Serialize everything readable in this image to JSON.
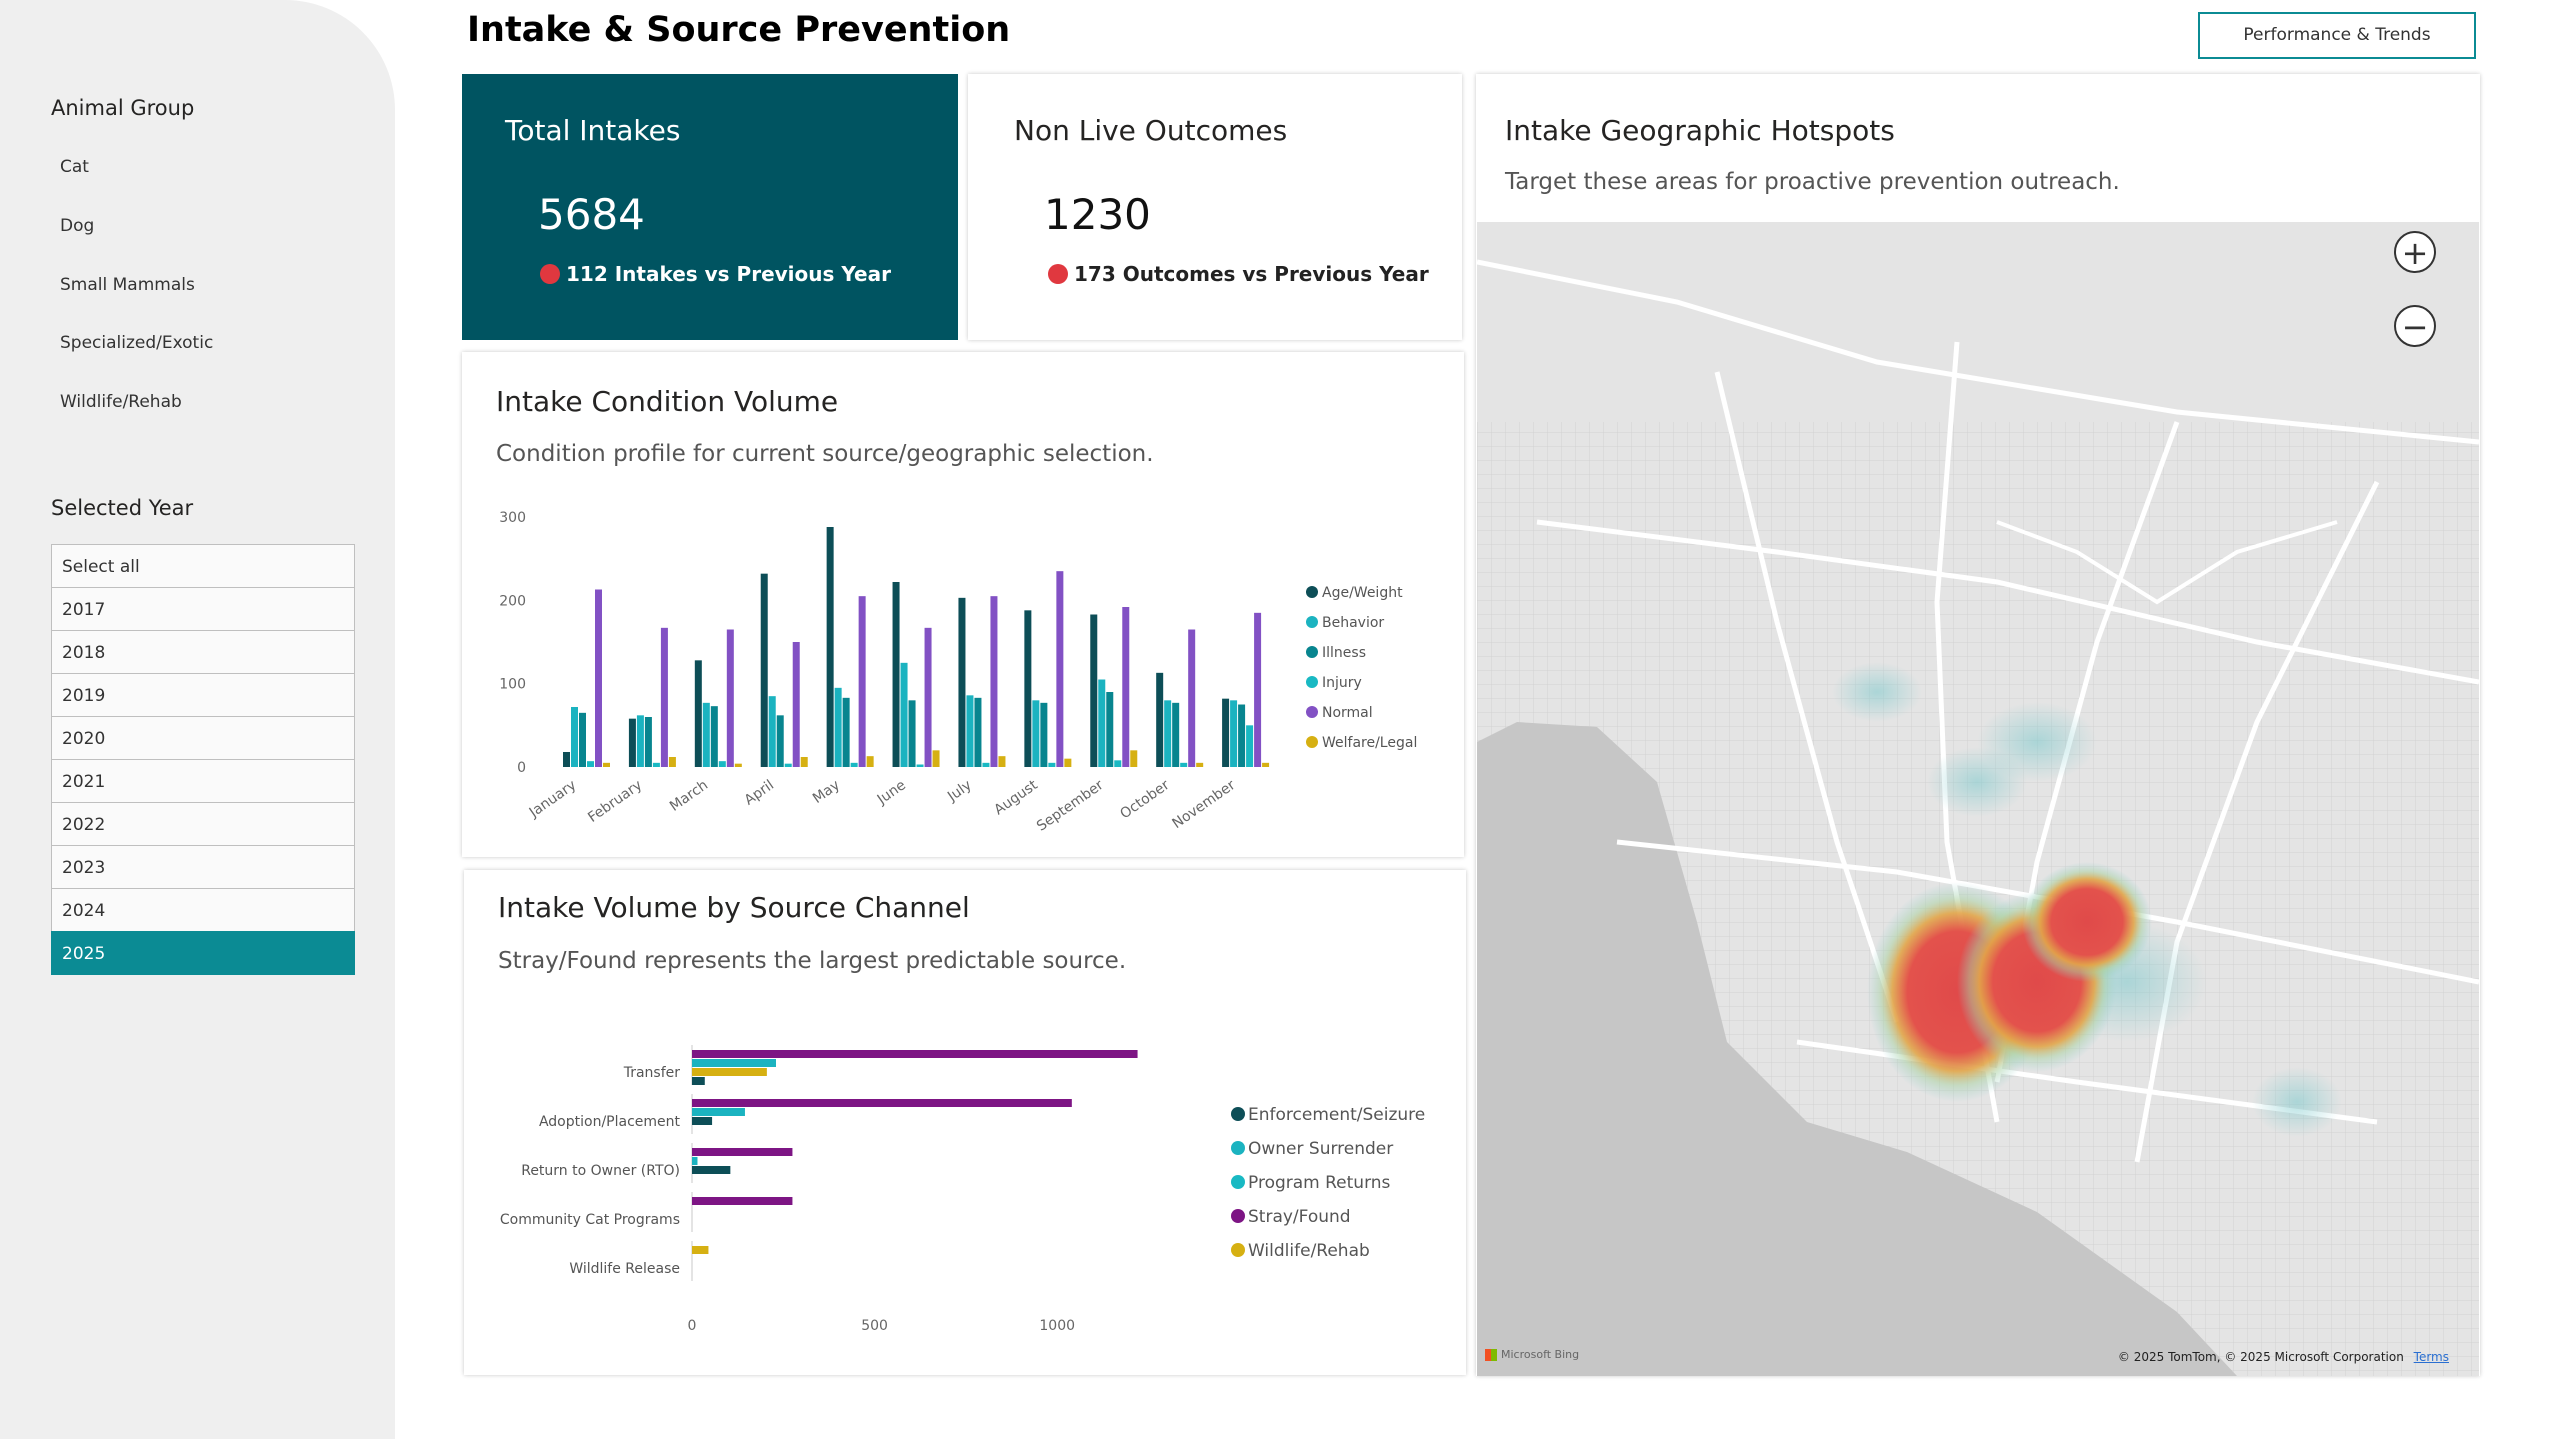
{
  "page_title": "Intake & Source Prevention",
  "top_button": "Performance & Trends",
  "sidebar": {
    "animal_group_heading": "Animal Group",
    "animal_groups": [
      "Cat",
      "Dog",
      "Small Mammals",
      "Specialized/Exotic",
      "Wildlife/Rehab"
    ],
    "year_heading": "Selected Year",
    "years": [
      "Select all",
      "2017",
      "2018",
      "2019",
      "2020",
      "2021",
      "2022",
      "2023",
      "2024",
      "2025"
    ],
    "selected_year": "2025"
  },
  "kpi_intakes": {
    "title": "Total Intakes",
    "value": "5684",
    "comparison": "112 Intakes vs Previous Year"
  },
  "kpi_outcomes": {
    "title": "Non Live Outcomes",
    "value": "1230",
    "comparison": "173 Outcomes vs Previous Year"
  },
  "condition_card": {
    "title": "Intake Condition Volume",
    "subtitle": "Condition profile for current source/geographic selection."
  },
  "source_card": {
    "title": "Intake Volume by Source Channel",
    "subtitle": "Stray/Found represents the largest predictable source."
  },
  "map_card": {
    "title": "Intake Geographic Hotspots",
    "subtitle": "Target these areas for proactive prevention outreach.",
    "zoom_in": "+",
    "zoom_out": "−",
    "provider": "Microsoft Bing",
    "copyright": "© 2025 TomTom, © 2025 Microsoft Corporation",
    "terms": "Terms"
  },
  "colors": {
    "accent": "#0b8b94",
    "kpi_dark": "#005461",
    "negative_dot": "#e0383f"
  },
  "chart_data": [
    {
      "type": "bar",
      "title": "Intake Condition Volume",
      "categories": [
        "January",
        "February",
        "March",
        "April",
        "May",
        "June",
        "July",
        "August",
        "September",
        "October",
        "November"
      ],
      "ylim": [
        0,
        300
      ],
      "yticks": [
        0,
        100,
        200,
        300
      ],
      "legend_position": "right",
      "series": [
        {
          "name": "Age/Weight",
          "color": "#0d4e57",
          "values": [
            18,
            58,
            128,
            232,
            288,
            222,
            203,
            188,
            183,
            113,
            82
          ]
        },
        {
          "name": "Behavior",
          "color": "#1bb3c0",
          "values": [
            72,
            62,
            77,
            85,
            95,
            125,
            86,
            80,
            105,
            80,
            80
          ]
        },
        {
          "name": "Illness",
          "color": "#08858f",
          "values": [
            65,
            60,
            73,
            62,
            83,
            80,
            83,
            77,
            90,
            77,
            75
          ]
        },
        {
          "name": "Injury",
          "color": "#19b9c3",
          "values": [
            7,
            5,
            7,
            4,
            5,
            3,
            5,
            5,
            8,
            5,
            50
          ]
        },
        {
          "name": "Normal",
          "color": "#8251c4",
          "values": [
            213,
            167,
            165,
            150,
            205,
            167,
            205,
            235,
            192,
            165,
            185
          ]
        },
        {
          "name": "Welfare/Legal",
          "color": "#d6b012",
          "values": [
            5,
            12,
            4,
            12,
            13,
            20,
            13,
            10,
            20,
            5,
            5
          ]
        }
      ]
    },
    {
      "type": "bar",
      "orientation": "horizontal",
      "title": "Intake Volume by Source Channel",
      "categories": [
        "Transfer",
        "Adoption/Placement",
        "Return to Owner (RTO)",
        "Community Cat Programs",
        "Wildlife Release"
      ],
      "xlim": [
        0,
        1150
      ],
      "xticks": [
        0,
        500,
        1000
      ],
      "legend_position": "right",
      "series": [
        {
          "name": "Enforcement/Seizure",
          "color": "#0d4e57",
          "values": [
            35,
            55,
            105,
            0,
            0
          ]
        },
        {
          "name": "Owner Surrender",
          "color": "#1bb3c0",
          "values": [
            230,
            145,
            15,
            0,
            0
          ]
        },
        {
          "name": "Program Returns",
          "color": "#19b9c3",
          "values": [
            0,
            0,
            0,
            0,
            0
          ]
        },
        {
          "name": "Stray/Found",
          "color": "#7d1584",
          "values": [
            1220,
            1040,
            275,
            275,
            0
          ]
        },
        {
          "name": "Wildlife/Rehab",
          "color": "#d6b012",
          "values": [
            205,
            0,
            0,
            0,
            45
          ]
        }
      ]
    }
  ]
}
